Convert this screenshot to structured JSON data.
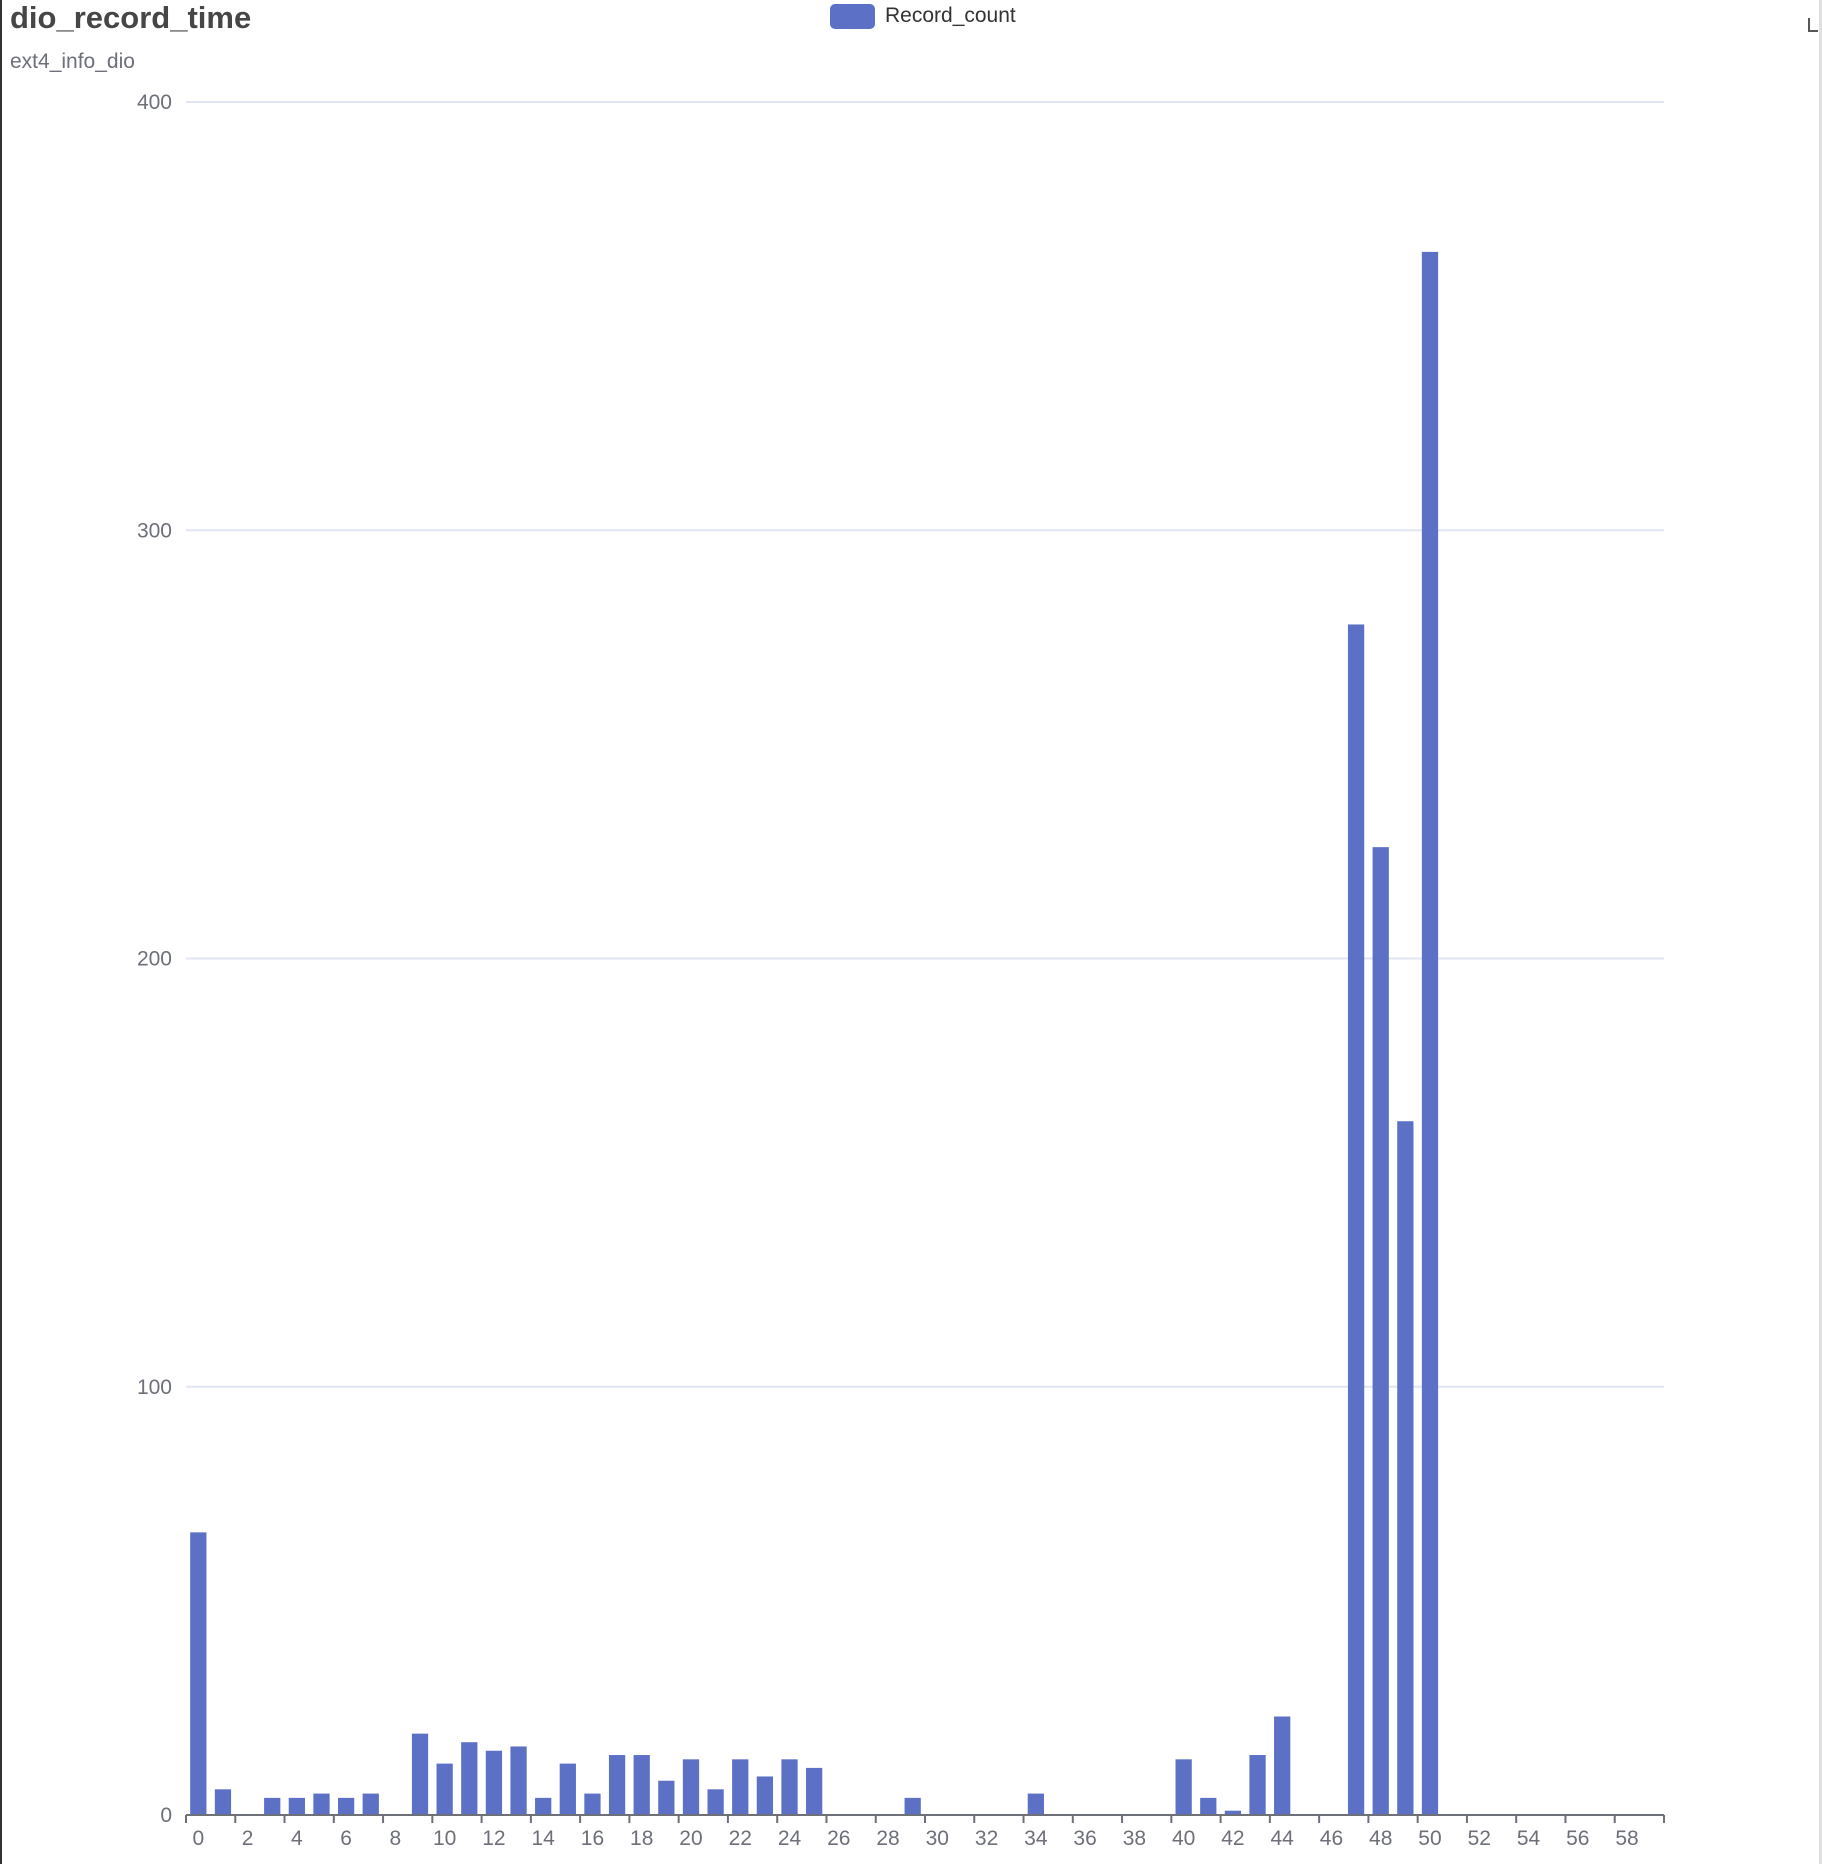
{
  "chart_data": {
    "type": "bar",
    "title": "dio_record_time",
    "subtitle": "ext4_info_dio",
    "legend": {
      "placement": "top-center",
      "entries": [
        "Record_count"
      ]
    },
    "xlabel": "",
    "ylabel": "",
    "x": [
      0,
      1,
      2,
      3,
      4,
      5,
      6,
      7,
      8,
      9,
      10,
      11,
      12,
      13,
      14,
      15,
      16,
      17,
      18,
      19,
      20,
      21,
      22,
      23,
      24,
      25,
      26,
      27,
      28,
      29,
      30,
      31,
      32,
      33,
      34,
      35,
      36,
      37,
      38,
      39,
      40,
      41,
      42,
      43,
      44,
      45,
      46,
      47,
      48,
      49,
      50,
      51,
      52,
      53,
      54,
      55,
      56,
      57,
      58,
      59
    ],
    "x_tick_labels": [
      "0",
      "2",
      "4",
      "6",
      "8",
      "10",
      "12",
      "14",
      "16",
      "18",
      "20",
      "22",
      "24",
      "26",
      "28",
      "30",
      "32",
      "34",
      "36",
      "38",
      "40",
      "42",
      "44",
      "46",
      "48",
      "50",
      "52",
      "54",
      "56",
      "58"
    ],
    "ylim": [
      0,
      400
    ],
    "y_ticks": [
      0,
      100,
      200,
      300,
      400
    ],
    "grid": true,
    "series": [
      {
        "name": "Record_count",
        "color": "#5c70c6",
        "values": [
          66,
          6,
          0,
          4,
          4,
          5,
          4,
          5,
          0,
          19,
          12,
          17,
          15,
          16,
          4,
          12,
          5,
          14,
          14,
          8,
          13,
          6,
          13,
          9,
          13,
          11,
          0,
          0,
          0,
          4,
          0,
          0,
          0,
          0,
          5,
          0,
          0,
          0,
          0,
          0,
          13,
          4,
          1,
          14,
          23,
          0,
          0,
          278,
          226,
          162,
          365,
          0,
          0,
          0,
          0,
          0,
          0,
          0,
          0,
          0
        ]
      }
    ]
  },
  "colors": {
    "bar": "#5c70c6",
    "grid": "#e0e6f1",
    "axis": "#6e7079",
    "title": "#464646"
  },
  "icons": {
    "toolbox": "expand-icon"
  }
}
